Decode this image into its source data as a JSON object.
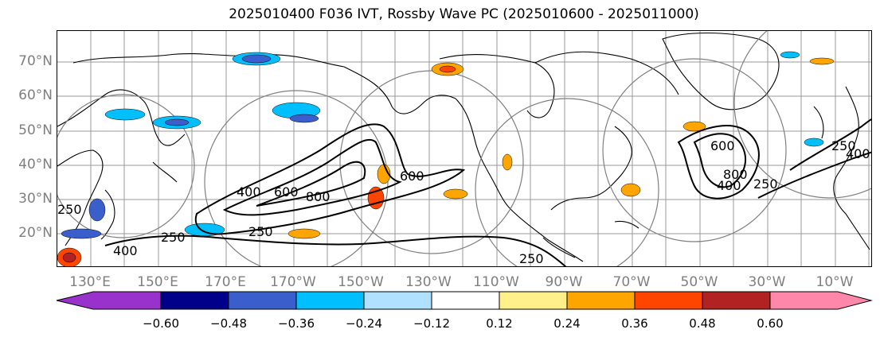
{
  "title": "2025010400 F036 IVT, Rossby Wave PC (2025010600 - 2025011000)",
  "lat_labels": [
    "70°N",
    "60°N",
    "50°N",
    "40°N",
    "30°N",
    "20°N"
  ],
  "lon_labels": [
    "130°E",
    "150°E",
    "170°E",
    "170°W",
    "150°W",
    "130°W",
    "110°W",
    "90°W",
    "70°W",
    "50°W",
    "30°W",
    "10°W"
  ],
  "ivt_contour_labels": [
    "250",
    "400",
    "600",
    "800",
    "250",
    "600",
    "400",
    "250",
    "250",
    "400",
    "250",
    "600",
    "800",
    "400",
    "250"
  ],
  "colorbar": {
    "ticks": [
      "−0.60",
      "−0.48",
      "−0.36",
      "−0.24",
      "−0.12",
      "0.12",
      "0.24",
      "0.36",
      "0.48",
      "0.60"
    ],
    "colors": [
      "#9932cc",
      "#00008b",
      "#3a5fcd",
      "#00bfff",
      "#b0e2ff",
      "#ffffff",
      "#fff08c",
      "#ffa500",
      "#ff4500",
      "#b22222",
      "#ff88aa"
    ]
  },
  "colors": {
    "coast": "#000000",
    "grid": "#888888",
    "ivt_contour": "#000000",
    "ring": "#808080"
  }
}
